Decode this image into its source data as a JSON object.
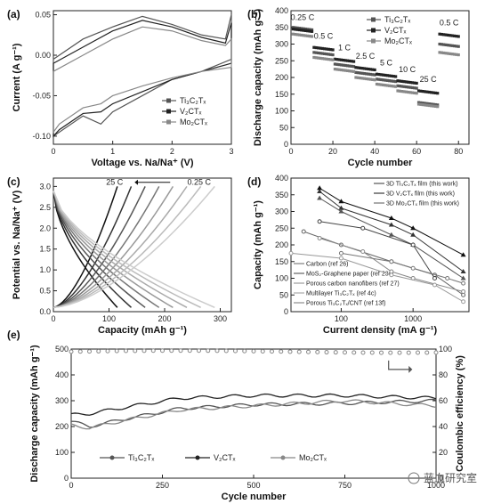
{
  "watermark": "蓝血研究室",
  "chart_data": [
    {
      "panel": "(a)",
      "type": "line",
      "xlabel": "Voltage vs. Na/Na⁺ (V)",
      "ylabel": "Current (A g⁻¹)",
      "xlim": [
        0,
        3
      ],
      "ylim": [
        -0.11,
        0.055
      ],
      "xticks": [
        "0",
        "1",
        "2",
        "3"
      ],
      "yticks": [
        "0.05",
        "0.00",
        "-0.05",
        "-0.10"
      ],
      "legend": [
        "Ti₃C₂Tₓ",
        "V₂CTₓ",
        "Mo₂CTₓ"
      ],
      "series": [
        {
          "name": "Ti₃C₂Tₓ",
          "anodic": [
            [
              0,
              -0.005
            ],
            [
              0.5,
              0.02
            ],
            [
              1.0,
              0.035
            ],
            [
              1.5,
              0.048
            ],
            [
              2.0,
              0.038
            ],
            [
              2.5,
              0.025
            ],
            [
              2.9,
              0.02
            ],
            [
              3.0,
              0.05
            ]
          ],
          "cathodic": [
            [
              3.0,
              -0.005
            ],
            [
              2.5,
              -0.02
            ],
            [
              2.0,
              -0.03
            ],
            [
              1.5,
              -0.05
            ],
            [
              1.0,
              -0.07
            ],
            [
              0.8,
              -0.085
            ],
            [
              0.5,
              -0.075
            ],
            [
              0.1,
              -0.095
            ],
            [
              0,
              -0.1
            ]
          ]
        },
        {
          "name": "V₂CTₓ",
          "anodic": [
            [
              0,
              -0.01
            ],
            [
              0.5,
              0.01
            ],
            [
              1.0,
              0.03
            ],
            [
              1.5,
              0.043
            ],
            [
              2.0,
              0.035
            ],
            [
              2.5,
              0.022
            ],
            [
              2.9,
              0.015
            ],
            [
              3.0,
              0.04
            ]
          ],
          "cathodic": [
            [
              3.0,
              -0.01
            ],
            [
              2.5,
              -0.02
            ],
            [
              2.0,
              -0.03
            ],
            [
              1.5,
              -0.045
            ],
            [
              1.0,
              -0.06
            ],
            [
              0.8,
              -0.07
            ],
            [
              0.5,
              -0.072
            ],
            [
              0.1,
              -0.092
            ],
            [
              0,
              -0.1
            ]
          ]
        },
        {
          "name": "Mo₂CTₓ",
          "anodic": [
            [
              0,
              -0.02
            ],
            [
              0.5,
              0.0
            ],
            [
              1.0,
              0.02
            ],
            [
              1.5,
              0.035
            ],
            [
              2.0,
              0.03
            ],
            [
              2.5,
              0.018
            ],
            [
              2.9,
              0.012
            ],
            [
              3.0,
              0.02
            ]
          ],
          "cathodic": [
            [
              3.0,
              -0.015
            ],
            [
              2.5,
              -0.02
            ],
            [
              2.0,
              -0.028
            ],
            [
              1.5,
              -0.038
            ],
            [
              1.0,
              -0.05
            ],
            [
              0.8,
              -0.06
            ],
            [
              0.5,
              -0.065
            ],
            [
              0.1,
              -0.085
            ],
            [
              0,
              -0.095
            ]
          ]
        }
      ]
    },
    {
      "panel": "(b)",
      "type": "scatter",
      "xlabel": "Cycle number",
      "ylabel": "Discharge capacity (mAh g⁻¹)",
      "xlim": [
        0,
        85
      ],
      "ylim": [
        0,
        400
      ],
      "xticks": [
        "0",
        "20",
        "40",
        "60",
        "80"
      ],
      "yticks": [
        "0",
        "50",
        "100",
        "150",
        "200",
        "250",
        "300",
        "350",
        "400"
      ],
      "legend": [
        "Ti₃C₂Tₓ",
        "V₂CTₓ",
        "Mo₂CTₓ"
      ],
      "rate_labels": [
        "0.25 C",
        "0.5 C",
        "1 C",
        "2.5 C",
        "5 C",
        "10 C",
        "25 C",
        "0.5 C"
      ],
      "segments": [
        [
          1,
          10
        ],
        [
          11,
          20
        ],
        [
          21,
          30
        ],
        [
          31,
          40
        ],
        [
          41,
          50
        ],
        [
          51,
          60
        ],
        [
          61,
          70
        ],
        [
          71,
          80
        ]
      ],
      "series": [
        {
          "name": "Ti₃C₂Tₓ",
          "values": [
            350,
            275,
            240,
            215,
            195,
            175,
            125,
            300
          ]
        },
        {
          "name": "V₂CTₓ",
          "values": [
            345,
            290,
            255,
            230,
            210,
            190,
            160,
            330
          ]
        },
        {
          "name": "Mo₂CTₓ",
          "values": [
            330,
            260,
            225,
            200,
            180,
            160,
            120,
            275
          ]
        }
      ]
    },
    {
      "panel": "(c)",
      "type": "line",
      "xlabel": "Capacity (mAh g⁻¹)",
      "ylabel": "Potential vs. Na/Na⁺ (V)",
      "xlim": [
        0,
        320
      ],
      "ylim": [
        0,
        3.2
      ],
      "xticks": [
        "0",
        "100",
        "200",
        "300"
      ],
      "yticks": [
        "0.0",
        "0.5",
        "1.0",
        "1.5",
        "2.0",
        "2.5",
        "3.0"
      ],
      "annotations": [
        "25 C",
        "0.25 C"
      ],
      "capacities": [
        115,
        140,
        165,
        190,
        215,
        240,
        265,
        290
      ]
    },
    {
      "panel": "(d)",
      "type": "line",
      "xscale": "log",
      "xlabel": "Current density (mA g⁻¹)",
      "ylabel": "Capacity (mAh g⁻¹)",
      "xlim": [
        20,
        6000
      ],
      "ylim": [
        0,
        400
      ],
      "xticks": [
        "100",
        "1000"
      ],
      "yticks": [
        "0",
        "50",
        "100",
        "150",
        "200",
        "250",
        "300",
        "350",
        "400"
      ],
      "series": [
        {
          "name": "3D Ti₃C₂Tₓ film (this work)",
          "points": [
            [
              50,
              360
            ],
            [
              100,
              310
            ],
            [
              500,
              260
            ],
            [
              1000,
              230
            ],
            [
              5000,
              120
            ]
          ]
        },
        {
          "name": "3D V₂CTₓ film (this work)",
          "points": [
            [
              50,
              370
            ],
            [
              100,
              330
            ],
            [
              500,
              280
            ],
            [
              1000,
              250
            ],
            [
              5000,
              170
            ]
          ]
        },
        {
          "name": "3D Mo₂CTₓ film (this work)",
          "points": [
            [
              50,
              340
            ],
            [
              100,
              300
            ],
            [
              500,
              230
            ],
            [
              1000,
              200
            ],
            [
              5000,
              100
            ]
          ]
        },
        {
          "name": "Carbon (ref 26)",
          "points": [
            [
              30,
              240
            ],
            [
              100,
              200
            ],
            [
              500,
              150
            ],
            [
              2000,
              110
            ],
            [
              5000,
              50
            ]
          ]
        },
        {
          "name": "MoS₂-Graphene paper (ref 23c)",
          "points": [
            [
              50,
              270
            ],
            [
              200,
              250
            ],
            [
              1000,
              200
            ],
            [
              2000,
              100
            ]
          ]
        },
        {
          "name": "Porous carbon nanofibers (ref 27)",
          "points": [
            [
              50,
              220
            ],
            [
              200,
              180
            ],
            [
              500,
              120
            ],
            [
              1000,
              100
            ],
            [
              5000,
              60
            ]
          ]
        },
        {
          "name": "Multilayer Ti₃C₂Tₓ (ref 4c)",
          "points": [
            [
              20,
              175
            ],
            [
              100,
              160
            ],
            [
              500,
              110
            ],
            [
              2000,
              80
            ],
            [
              5000,
              30
            ]
          ]
        },
        {
          "name": "Porous Ti₃C₂Tₓ/CNT (ref 13f)",
          "points": [
            [
              100,
              175
            ],
            [
              500,
              150
            ],
            [
              1000,
              130
            ],
            [
              3000,
              100
            ],
            [
              5000,
              85
            ]
          ]
        }
      ]
    },
    {
      "panel": "(e)",
      "type": "line",
      "xlabel": "Cycle number",
      "ylabel": "Discharge capacity (mAh g⁻¹)",
      "y2label": "Coulombic efficiency (%)",
      "xlim": [
        0,
        1000
      ],
      "ylim": [
        0,
        500
      ],
      "y2lim": [
        0,
        100
      ],
      "xticks": [
        "0",
        "250",
        "500",
        "750",
        "1000"
      ],
      "yticks": [
        "0",
        "100",
        "200",
        "300",
        "400",
        "500"
      ],
      "y2ticks": [
        "0",
        "20",
        "40",
        "60",
        "80",
        "100"
      ],
      "legend": [
        "Ti₃C₂Tₓ",
        "V₂CTₓ",
        "Mo₂CTₓ"
      ],
      "series": [
        {
          "name": "Ti₃C₂Tₓ",
          "points": [
            [
              0,
              220
            ],
            [
              50,
              200
            ],
            [
              150,
              230
            ],
            [
              300,
              270
            ],
            [
              500,
              285
            ],
            [
              750,
              290
            ],
            [
              1000,
              300
            ]
          ]
        },
        {
          "name": "V₂CTₓ",
          "points": [
            [
              0,
              245
            ],
            [
              50,
              250
            ],
            [
              150,
              275
            ],
            [
              300,
              310
            ],
            [
              500,
              320
            ],
            [
              750,
              320
            ],
            [
              1000,
              310
            ]
          ]
        },
        {
          "name": "Mo₂CTₓ",
          "points": [
            [
              0,
              205
            ],
            [
              50,
              195
            ],
            [
              150,
              225
            ],
            [
              300,
              265
            ],
            [
              500,
              280
            ],
            [
              750,
              300
            ],
            [
              1000,
              280
            ]
          ]
        }
      ],
      "coulombic_efficiency": 98
    }
  ]
}
